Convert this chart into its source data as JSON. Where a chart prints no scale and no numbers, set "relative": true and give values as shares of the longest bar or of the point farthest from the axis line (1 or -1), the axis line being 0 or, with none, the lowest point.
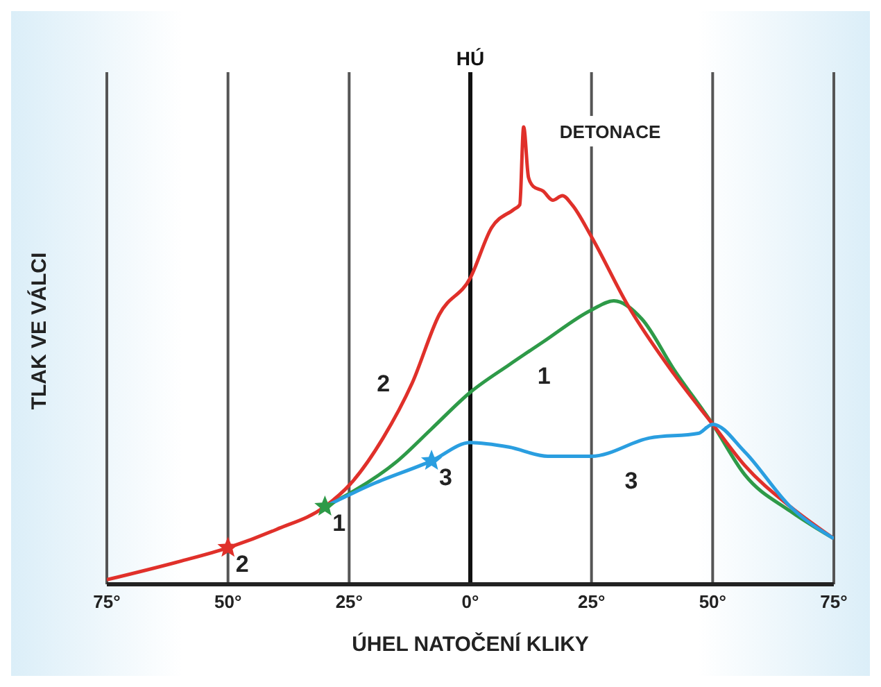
{
  "chart_data": {
    "type": "line",
    "relative": true,
    "xlabel": "ÚHEL NATOČENÍ KLIKY",
    "ylabel": "TLAK VE VÁLCI",
    "xlim": [
      -75,
      75
    ],
    "xticks": [
      {
        "value": -75,
        "label": "75°"
      },
      {
        "value": -50,
        "label": "50°"
      },
      {
        "value": -25,
        "label": "25°"
      },
      {
        "value": 0,
        "label": "0°"
      },
      {
        "value": 25,
        "label": "25°"
      },
      {
        "value": 50,
        "label": "50°"
      },
      {
        "value": 75,
        "label": "75°"
      }
    ],
    "grid": "x",
    "legend": false,
    "marker": "none",
    "line_style": "solid",
    "ref_lines": [
      {
        "axis": "x",
        "value": 0,
        "label": "HÚ",
        "color": "#111111"
      }
    ],
    "series": [
      {
        "color": "#2e9a48",
        "x": [
          -30,
          -24.7,
          -15,
          -8,
          0,
          8,
          15,
          25,
          29.6,
          35.4,
          42,
          50,
          56.6,
          66,
          75
        ],
        "values": [
          0.17,
          0.2,
          0.27,
          0.34,
          0.42,
          0.48,
          0.53,
          0.6,
          0.62,
          0.58,
          0.47,
          0.35,
          0.24,
          0.16,
          0.1
        ]
      },
      {
        "color": "#e0302a",
        "x": [
          -75,
          -60,
          -50,
          -40,
          -30,
          -24.7,
          -18,
          -12,
          -6.4,
          0,
          4.4,
          9,
          10.2,
          11,
          12,
          13,
          15,
          17,
          19,
          21,
          25,
          32.5,
          42,
          50,
          56.6,
          66,
          75
        ],
        "values": [
          0.01,
          0.05,
          0.08,
          0.12,
          0.17,
          0.22,
          0.32,
          0.44,
          0.59,
          0.67,
          0.78,
          0.82,
          0.83,
          1,
          0.89,
          0.87,
          0.86,
          0.84,
          0.85,
          0.83,
          0.76,
          0.61,
          0.46,
          0.35,
          0.26,
          0.17,
          0.1
        ]
      },
      {
        "color": "#2a9ee0",
        "x": [
          -30,
          -20,
          -8,
          0,
          8,
          16,
          25,
          37,
          47,
          50,
          56.6,
          66,
          75
        ],
        "values": [
          0.17,
          0.22,
          0.27,
          0.31,
          0.3,
          0.28,
          0.28,
          0.32,
          0.33,
          0.35,
          0.29,
          0.17,
          0.1
        ]
      },
      {
        "type": "scatter",
        "name": "2",
        "color": "#e0302a",
        "marker": "star",
        "x": [
          -50
        ],
        "values": [
          0.08
        ]
      },
      {
        "type": "scatter",
        "name": "1",
        "color": "#2e9a48",
        "marker": "star",
        "x": [
          -30
        ],
        "values": [
          0.17
        ]
      },
      {
        "type": "scatter",
        "name": "3",
        "color": "#2a9ee0",
        "marker": "star",
        "x": [
          -8
        ],
        "values": [
          0.27
        ]
      }
    ],
    "annotations": [
      {
        "text": "2",
        "x": -12,
        "y": 0.44
      },
      {
        "text": "1",
        "x": 15,
        "y": 0.53
      },
      {
        "text": "3",
        "x": 33,
        "y": 0.3
      },
      {
        "text": "DETONACE",
        "x": 11,
        "y": 1
      }
    ]
  }
}
